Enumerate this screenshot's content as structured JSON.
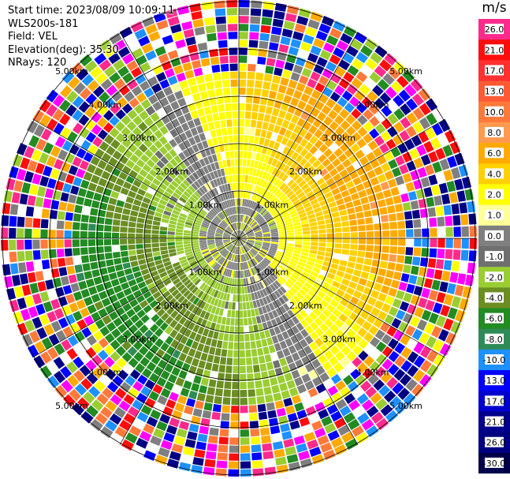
{
  "header": {
    "start_time": "Start time: 2023/08/09 10:09:11",
    "instrument": "WLS200s-181",
    "field": "Field: VEL",
    "elevation": "Elevation(deg): 35.30",
    "nrays": "NRays: 120"
  },
  "colorbar": {
    "unit": "m/s",
    "levels": [
      {
        "label": "26.0",
        "color": "#ff2a8c"
      },
      {
        "label": "21.0",
        "color": "#ff0d0d"
      },
      {
        "label": "17.0",
        "color": "#ff3030"
      },
      {
        "label": "13.0",
        "color": "#ff5a35"
      },
      {
        "label": "10.0",
        "color": "#ff7a3a"
      },
      {
        "label": "8.0",
        "color": "#ff9a50"
      },
      {
        "label": "6.0",
        "color": "#ffaa00"
      },
      {
        "label": "4.0",
        "color": "#ffd000"
      },
      {
        "label": "2.0",
        "color": "#ffff00"
      },
      {
        "label": "1.0",
        "color": "#ffff99"
      },
      {
        "label": "0.0",
        "color": "#7f7f7f"
      },
      {
        "label": "-1.0",
        "color": "#6f6f6f"
      },
      {
        "label": "-2.0",
        "color": "#9acd32"
      },
      {
        "label": "-4.0",
        "color": "#6b8e23"
      },
      {
        "label": "-6.0",
        "color": "#228b22"
      },
      {
        "label": "-8.0",
        "color": "#2e8b57"
      },
      {
        "label": "-10.0",
        "color": "#1e90ff"
      },
      {
        "label": "-13.0",
        "color": "#0000ff"
      },
      {
        "label": "-17.0",
        "color": "#0000cd"
      },
      {
        "label": "-21.0",
        "color": "#00008b"
      },
      {
        "label": "-26.0",
        "color": "#000080"
      },
      {
        "label": "-30.0",
        "color": "#00004a"
      }
    ]
  },
  "range_ring_labels": [
    "1.00km",
    "2.00km",
    "3.00km",
    "4.00km",
    "5.00km"
  ]
}
